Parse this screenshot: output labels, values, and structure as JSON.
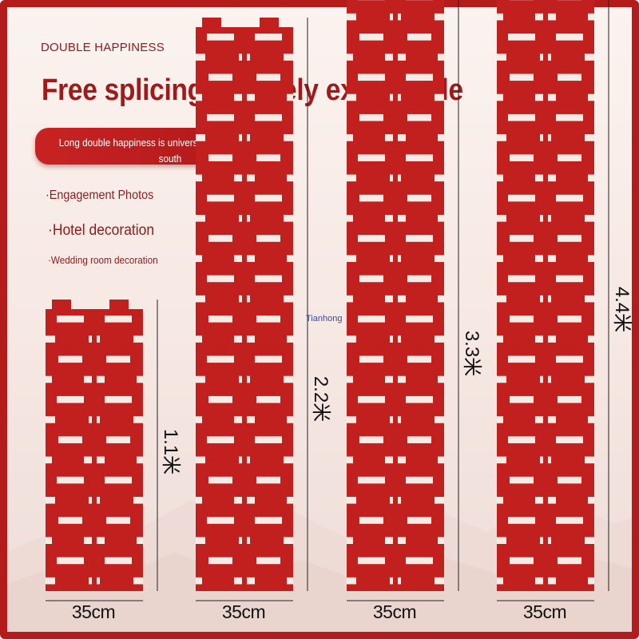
{
  "brand": "DOUBLE HAPPINESS",
  "headline": "Free splicing infinitely extendable",
  "banner_text": "Long double happiness is universal for both north and south",
  "features": [
    "·Engagement Photos",
    "·Hotel decoration",
    "·Wedding room decoration"
  ],
  "watermark": "Tianhong",
  "columns": [
    {
      "length_label": "1.1米",
      "width_label": "35cm",
      "units": 1
    },
    {
      "length_label": "2.2米",
      "width_label": "35cm",
      "units": 2
    },
    {
      "length_label": "3.3米",
      "width_label": "35cm",
      "units": 3
    },
    {
      "length_label": "4.4米",
      "width_label": "35cm",
      "units": 4
    }
  ],
  "colors": {
    "red": "#c21f1f",
    "frame": "#b41c1c",
    "text_red": "#a31818"
  }
}
